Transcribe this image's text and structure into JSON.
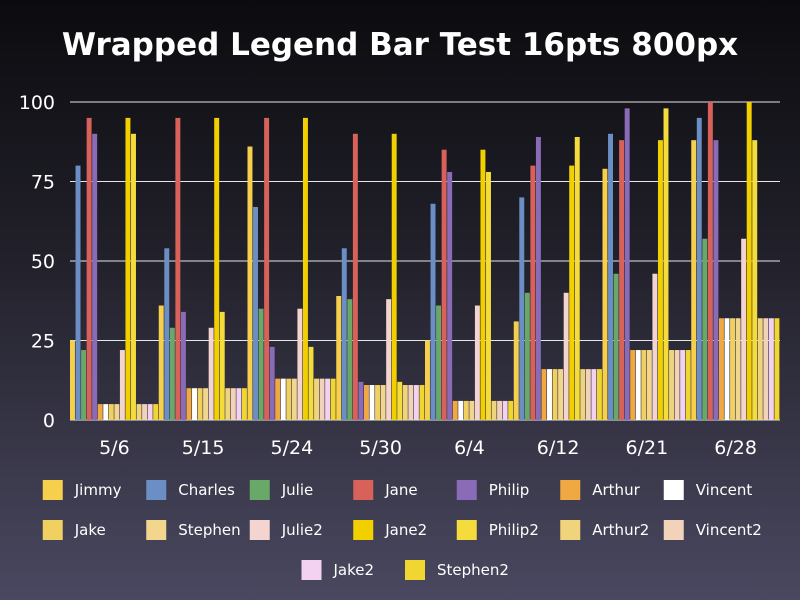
{
  "chart_data": {
    "type": "bar",
    "title": "Wrapped Legend Bar Test 16pts 800px",
    "xlabel": "",
    "ylabel": "",
    "ylim": [
      0,
      100
    ],
    "yticks": [
      "0",
      "25",
      "50",
      "75",
      "100"
    ],
    "grid": true,
    "legend_position": "bottom",
    "categories": [
      "5/6",
      "5/15",
      "5/24",
      "5/30",
      "6/4",
      "6/12",
      "6/21",
      "6/28"
    ],
    "series": [
      {
        "name": "Jimmy",
        "color": "#f6d04d",
        "values": [
          25,
          36,
          86,
          39,
          25,
          31,
          79,
          88
        ]
      },
      {
        "name": "Charles",
        "color": "#6b8ec4",
        "values": [
          80,
          54,
          67,
          54,
          68,
          70,
          90,
          95
        ]
      },
      {
        "name": "Julie",
        "color": "#6aa86a",
        "values": [
          22,
          29,
          35,
          38,
          36,
          40,
          46,
          57
        ]
      },
      {
        "name": "Jane",
        "color": "#d8625a",
        "values": [
          95,
          95,
          95,
          90,
          85,
          80,
          88,
          100
        ]
      },
      {
        "name": "Philip",
        "color": "#8a6bb8",
        "values": [
          90,
          34,
          23,
          12,
          78,
          89,
          98,
          88
        ]
      },
      {
        "name": "Arthur",
        "color": "#f0a843",
        "values": [
          5,
          10,
          13,
          11,
          6,
          16,
          22,
          32
        ]
      },
      {
        "name": "Vincent",
        "color": "#ffffff",
        "values": [
          5,
          10,
          13,
          11,
          6,
          16,
          22,
          32
        ]
      },
      {
        "name": "Jake",
        "color": "#f0d060",
        "values": [
          5,
          10,
          13,
          11,
          6,
          16,
          22,
          32
        ]
      },
      {
        "name": "Stephen",
        "color": "#f2d68e",
        "values": [
          5,
          10,
          13,
          11,
          6,
          16,
          22,
          32
        ]
      },
      {
        "name": "Julie2",
        "color": "#f4d4d0",
        "values": [
          22,
          29,
          35,
          38,
          36,
          40,
          46,
          57
        ]
      },
      {
        "name": "Jane2",
        "color": "#f2d000",
        "values": [
          95,
          95,
          95,
          90,
          85,
          80,
          88,
          100
        ]
      },
      {
        "name": "Philip2",
        "color": "#f4dc3c",
        "values": [
          90,
          34,
          23,
          12,
          78,
          89,
          98,
          88
        ]
      },
      {
        "name": "Arthur2",
        "color": "#f0d47c",
        "values": [
          5,
          10,
          13,
          11,
          6,
          16,
          22,
          32
        ]
      },
      {
        "name": "Vincent2",
        "color": "#f2d2b8",
        "values": [
          5,
          10,
          13,
          11,
          6,
          16,
          22,
          32
        ]
      },
      {
        "name": "Jake2",
        "color": "#f2d2f0",
        "values": [
          5,
          10,
          13,
          11,
          6,
          16,
          22,
          32
        ]
      },
      {
        "name": "Stephen2",
        "color": "#f0d630",
        "values": [
          5,
          10,
          13,
          11,
          6,
          16,
          22,
          32
        ]
      }
    ]
  }
}
